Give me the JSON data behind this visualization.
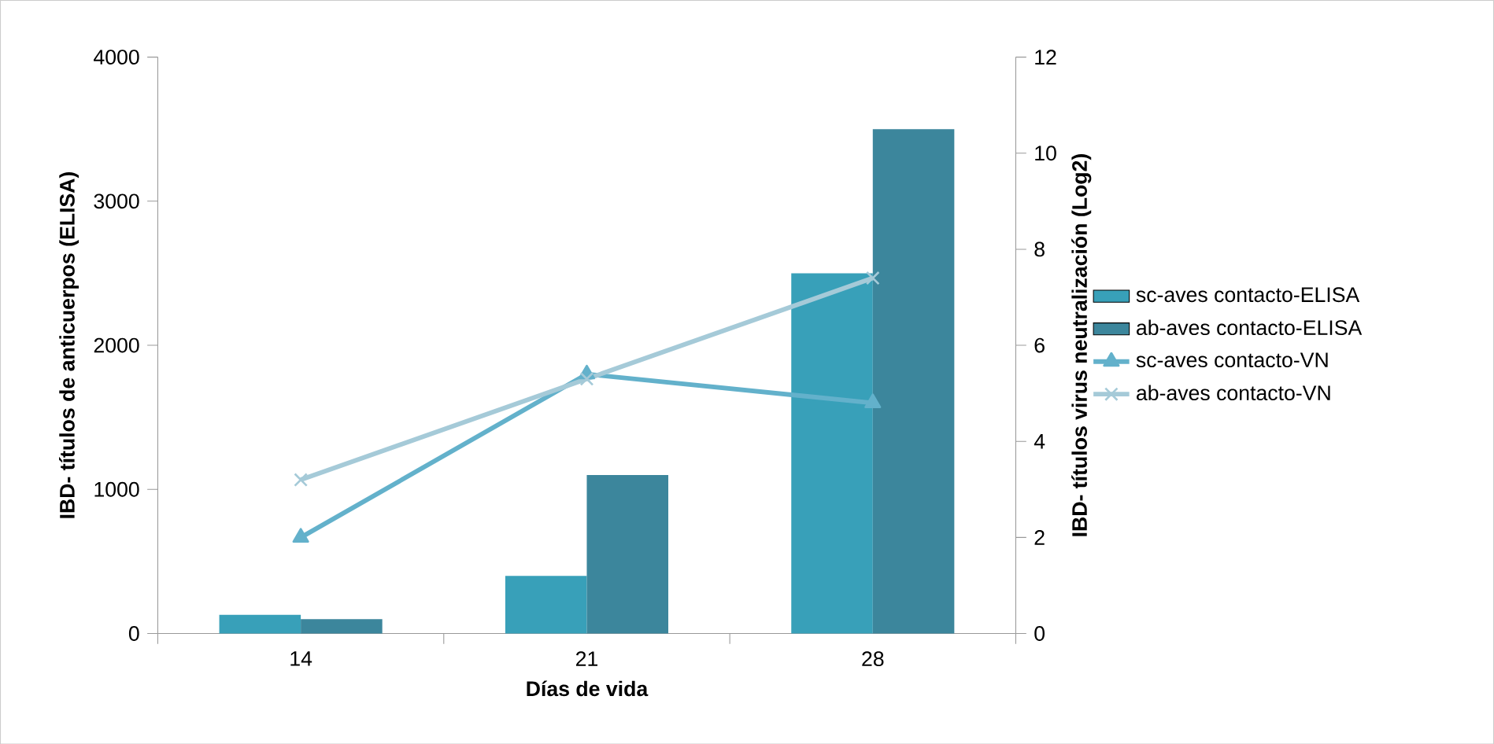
{
  "chart_data": {
    "type": "bar",
    "xlabel": "Días de vida",
    "ylabel": "IBD- títulos de anticuerpos (ELISA)",
    "y2label": "IBD- títulos virus neutralización (Log2)",
    "categories": [
      "14",
      "21",
      "28"
    ],
    "series": [
      {
        "name": "sc-aves contacto-ELISA",
        "color": "#38a0b9",
        "values": [
          130,
          400,
          2500
        ]
      },
      {
        "name": "ab-aves contacto-ELISA",
        "color": "#3c869c",
        "values": [
          100,
          1100,
          3500
        ]
      },
      {
        "name": "sc-aves contacto-VN",
        "type": "line",
        "axis": "y2",
        "marker": "triangle",
        "color": "#63b1cb",
        "values": [
          2.0,
          5.4,
          4.8
        ]
      },
      {
        "name": "ab-aves contacto-VN",
        "type": "line",
        "axis": "y2",
        "marker": "cross",
        "color": "#a5cad8",
        "values": [
          3.2,
          5.3,
          7.4
        ]
      }
    ],
    "ylim": [
      0,
      4000
    ],
    "yticks": [
      0,
      1000,
      2000,
      3000,
      4000
    ],
    "y2lim": [
      0,
      12
    ],
    "y2ticks": [
      0,
      2,
      4,
      6,
      8,
      10,
      12
    ],
    "legend": "right",
    "grid": false
  }
}
